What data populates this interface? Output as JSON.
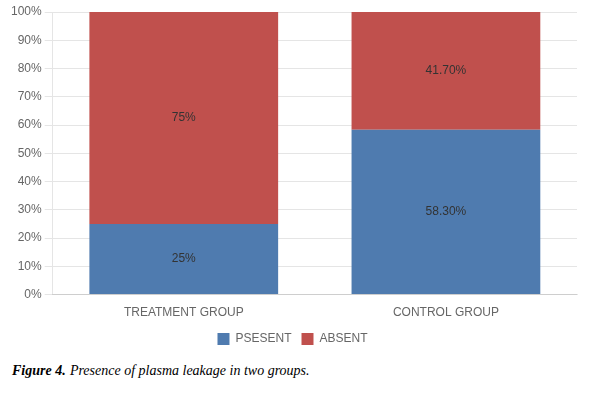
{
  "chart_data": {
    "type": "bar",
    "categories": [
      "TREATMENT GROUP",
      "CONTROL GROUP"
    ],
    "series": [
      {
        "name": "PSESENT",
        "color": "#4f7baf",
        "values": [
          25,
          58.3
        ],
        "value_labels": [
          "25%",
          "58.30%"
        ]
      },
      {
        "name": "ABSENT",
        "color": "#c0504d",
        "values": [
          75,
          41.7
        ],
        "value_labels": [
          "75%",
          "41.70%"
        ]
      }
    ],
    "stacked": true,
    "data_labels": true,
    "ylim": [
      0,
      100
    ],
    "yticks": [
      {
        "value": 0,
        "label": "0%"
      },
      {
        "value": 10,
        "label": "10%"
      },
      {
        "value": 20,
        "label": "20%"
      },
      {
        "value": 30,
        "label": "30%"
      },
      {
        "value": 40,
        "label": "40%"
      },
      {
        "value": 50,
        "label": "50%"
      },
      {
        "value": 60,
        "label": "60%"
      },
      {
        "value": 70,
        "label": "70%"
      },
      {
        "value": 80,
        "label": "80%"
      },
      {
        "value": 90,
        "label": "90%"
      },
      {
        "value": 100,
        "label": "100%"
      }
    ],
    "grid": true,
    "legend": "bottom",
    "annotations": [
      "Figure 4.",
      "Presence of plasma leakage in two groups."
    ]
  }
}
